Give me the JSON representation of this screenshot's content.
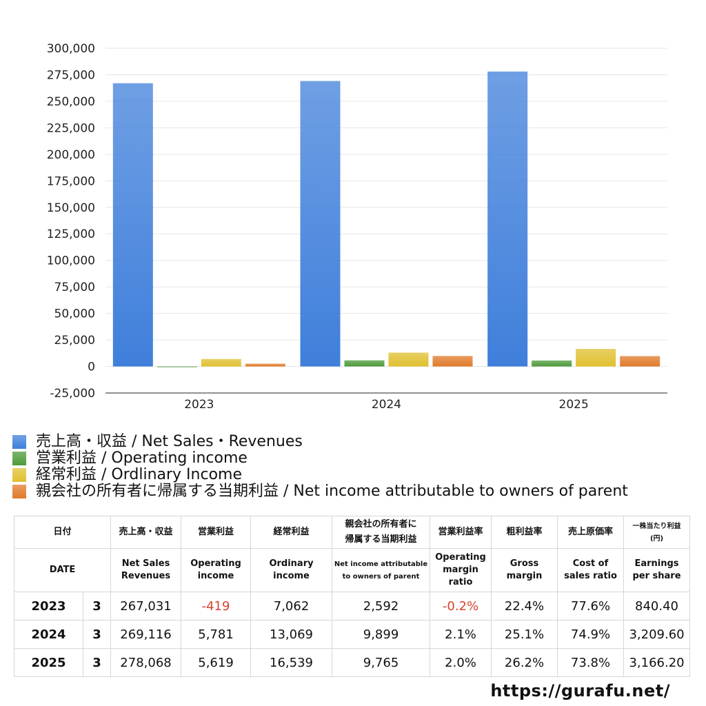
{
  "chart_data": {
    "type": "bar",
    "categories": [
      "2023",
      "2024",
      "2025"
    ],
    "series": [
      {
        "name": "売上高・収益 / Net Sales・Revenues",
        "color": "#3f7fdb",
        "values": [
          267031,
          269116,
          278068
        ]
      },
      {
        "name": "営業利益 / Operating income",
        "color": "#4c9a3a",
        "values": [
          -419,
          5781,
          5619
        ]
      },
      {
        "name": "経常利益 / Ordlinary Income",
        "color": "#e0c030",
        "values": [
          7062,
          13069,
          16539
        ]
      },
      {
        "name": "親会社の所有者に帰属する当期利益 / Net income attributable to owners of parent",
        "color": "#e07a2a",
        "values": [
          2592,
          9899,
          9765
        ]
      }
    ],
    "yticks": [
      "300,000",
      "275,000",
      "250,000",
      "225,000",
      "200,000",
      "175,000",
      "150,000",
      "125,000",
      "100,000",
      "75,000",
      "50,000",
      "25,000",
      "0",
      "-25,000"
    ],
    "ylim": [
      -25000,
      300000
    ],
    "grid": true,
    "legend_position": "bottom"
  },
  "table": {
    "headers_jp": [
      "日付",
      "売上高・収益",
      "営業利益",
      "経常利益",
      "親会社の所有者に\n帰属する当期利益",
      "営業利益率",
      "粗利益率",
      "売上原価率",
      "一株当たり利益\n(円)"
    ],
    "headers_en": [
      "DATE",
      "Net Sales\nRevenues",
      "Operating\nincome",
      "Ordinary\nincome",
      "Net income attributable\nto owners of parent",
      "Operating\nmargin\nratio",
      "Gross\nmargin",
      "Cost of\nsales ratio",
      "Earnings\nper share"
    ],
    "rows": [
      {
        "year": "2023",
        "month": "3",
        "sales": "267,031",
        "op": "-419",
        "ord": "7,062",
        "net": "2,592",
        "opm": "-0.2%",
        "gm": "22.4%",
        "cos": "77.6%",
        "eps": "840.40"
      },
      {
        "year": "2024",
        "month": "3",
        "sales": "269,116",
        "op": "5,781",
        "ord": "13,069",
        "net": "9,899",
        "opm": "2.1%",
        "gm": "25.1%",
        "cos": "74.9%",
        "eps": "3,209.60"
      },
      {
        "year": "2025",
        "month": "3",
        "sales": "278,068",
        "op": "5,619",
        "ord": "16,539",
        "net": "9,765",
        "opm": "2.0%",
        "gm": "26.2%",
        "cos": "73.8%",
        "eps": "3,166.20"
      }
    ]
  },
  "site": "https://gurafu.net/"
}
